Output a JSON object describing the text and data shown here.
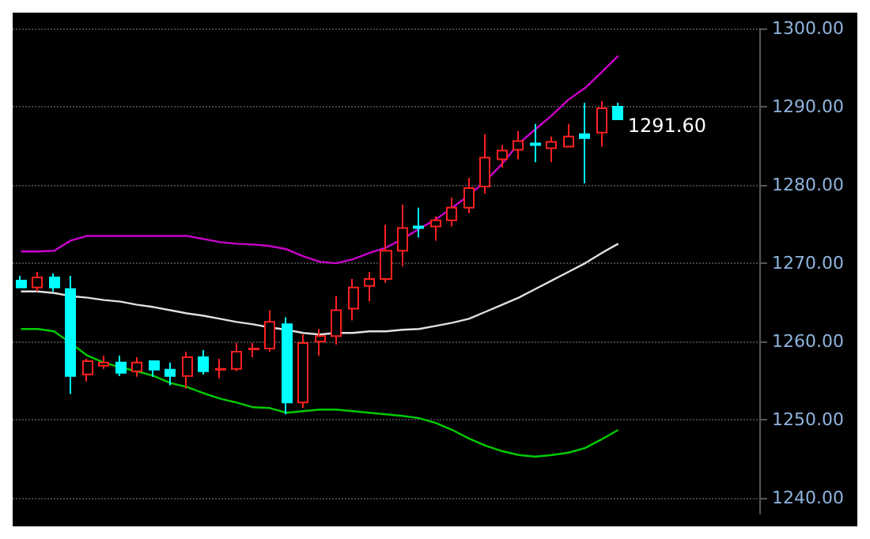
{
  "chart_data": {
    "type": "candlestick",
    "categories": [
      null,
      null,
      null,
      null,
      null,
      null,
      null,
      null,
      null,
      null,
      null,
      null,
      null,
      null,
      null,
      null,
      null,
      null,
      null,
      null,
      null,
      null,
      null,
      null,
      null,
      null,
      null,
      null,
      null,
      null,
      null,
      null,
      null,
      null,
      null,
      null,
      null,
      null,
      null,
      null,
      null,
      null,
      null,
      null,
      null
    ],
    "ylim": [
      1238,
      1300
    ],
    "yticks": [
      {
        "value": 1240,
        "label": "1240.00"
      },
      {
        "value": 1250,
        "label": "1250.00"
      },
      {
        "value": 1260,
        "label": "1260.00"
      },
      {
        "value": 1270,
        "label": "1270.00"
      },
      {
        "value": 1280,
        "label": "1280.00"
      },
      {
        "value": 1290,
        "label": "1290.00"
      },
      {
        "value": 1300,
        "label": "1300.00"
      }
    ],
    "grid": "y",
    "annotations": [
      "1291.60"
    ],
    "series": [
      {
        "type": "line",
        "color": "#cc00cc",
        "values": [
          1271.5,
          1271.5,
          1271.6,
          1272.9,
          1273.5,
          1273.5,
          1273.5,
          1273.5,
          1273.5,
          1273.5,
          1273.5,
          1273.1,
          1272.7,
          1272.5,
          1272.4,
          1272.2,
          1271.8,
          1270.9,
          1270.2,
          1270.0,
          1270.5,
          1271.3,
          1272.0,
          1273.1,
          1274.4,
          1275.6,
          1277.1,
          1278.7,
          1280.5,
          1282.7,
          1285.3,
          1287.1,
          1288.9,
          1290.9,
          1292.4,
          1294.4,
          1296.5,
          null,
          null,
          null,
          null,
          null,
          null,
          null,
          null
        ]
      },
      {
        "type": "line",
        "color": "#e0e0e0",
        "values": [
          1266.4,
          1266.4,
          1266.2,
          1265.8,
          1265.6,
          1265.3,
          1265.1,
          1264.7,
          1264.4,
          1264.0,
          1263.6,
          1263.3,
          1262.9,
          1262.5,
          1262.2,
          1261.8,
          1261.5,
          1261.1,
          1260.9,
          1261.1,
          1261.1,
          1261.3,
          1261.3,
          1261.5,
          1261.6,
          1262.0,
          1262.4,
          1262.9,
          1263.8,
          1264.7,
          1265.6,
          1266.7,
          1267.8,
          1268.9,
          1270.0,
          1271.3,
          1272.5,
          null,
          null,
          null,
          null,
          null,
          null,
          null,
          null
        ]
      },
      {
        "type": "line",
        "color": "#00cc00",
        "values": [
          1261.6,
          1261.6,
          1261.3,
          1259.8,
          1258.2,
          1257.3,
          1256.7,
          1256.2,
          1255.6,
          1254.7,
          1254.2,
          1253.4,
          1252.7,
          1252.2,
          1251.6,
          1251.5,
          1250.9,
          1251.1,
          1251.3,
          1251.3,
          1251.1,
          1250.9,
          1250.7,
          1250.5,
          1250.2,
          1249.6,
          1248.7,
          1247.6,
          1246.7,
          1246.0,
          1245.5,
          1245.3,
          1245.5,
          1245.8,
          1246.4,
          1247.5,
          1248.7,
          null,
          null,
          null,
          null,
          null,
          null,
          null,
          null
        ]
      },
      {
        "colors": [
          "#00ffff",
          "#ff2020",
          "#00ffff",
          "#00ffff",
          "#ff2020",
          "#ff2020",
          "#00ffff",
          "#ff2020",
          "#00ffff",
          "#00ffff",
          "#ff2020",
          "#00ffff",
          "#ff2020",
          "#ff2020",
          "#ff2020",
          "#ff2020",
          "#00ffff",
          "#ff2020",
          "#ff2020",
          "#ff2020",
          "#ff2020",
          "#ff2020",
          "#ff2020",
          "#ff2020",
          "#00ffff",
          "#ff2020",
          "#ff2020",
          "#ff2020",
          "#ff2020",
          "#ff2020",
          "#ff2020",
          "#00ffff",
          "#ff2020",
          "#ff2020",
          "#00ffff",
          "#ff2020",
          "#00ffff",
          null,
          null,
          null,
          null,
          null,
          null,
          null,
          null
        ],
        "ohlc": [
          [
            1267.8,
            1268.4,
            1266.9,
            1266.9
          ],
          [
            1266.9,
            1268.9,
            1266.4,
            1268.2
          ],
          [
            1268.2,
            1268.7,
            1266.4,
            1266.9
          ],
          [
            1266.7,
            1268.4,
            1253.3,
            1255.6
          ],
          [
            1255.8,
            1257.8,
            1254.9,
            1257.5
          ],
          [
            1256.9,
            1258.2,
            1256.5,
            1257.3
          ],
          [
            1257.3,
            1258.2,
            1255.6,
            1256.0
          ],
          [
            1256.2,
            1258.0,
            1255.5,
            1257.3
          ],
          [
            1257.5,
            1257.6,
            1255.5,
            1256.4
          ],
          [
            1256.4,
            1257.3,
            1254.4,
            1255.6
          ],
          [
            1255.6,
            1258.7,
            1254.0,
            1258.0
          ],
          [
            1258.0,
            1258.9,
            1255.8,
            1256.2
          ],
          [
            1256.4,
            1257.8,
            1255.3,
            1256.5
          ],
          [
            1256.5,
            1259.8,
            1256.2,
            1258.7
          ],
          [
            1259.0,
            1259.8,
            1258.0,
            1259.1
          ],
          [
            1259.1,
            1264.0,
            1258.7,
            1262.5
          ],
          [
            1262.2,
            1263.1,
            1250.7,
            1252.2
          ],
          [
            1252.2,
            1260.9,
            1251.5,
            1259.8
          ],
          [
            1260.0,
            1261.6,
            1258.2,
            1260.7
          ],
          [
            1260.7,
            1265.8,
            1259.6,
            1264.0
          ],
          [
            1264.2,
            1268.0,
            1262.7,
            1266.9
          ],
          [
            1267.1,
            1268.9,
            1265.1,
            1268.0
          ],
          [
            1268.0,
            1274.9,
            1267.5,
            1271.6
          ],
          [
            1271.6,
            1277.5,
            1269.6,
            1274.5
          ],
          [
            1274.7,
            1277.1,
            1273.3,
            1274.5
          ],
          [
            1274.7,
            1276.0,
            1272.9,
            1275.5
          ],
          [
            1275.5,
            1278.4,
            1274.7,
            1277.1
          ],
          [
            1277.1,
            1280.9,
            1276.4,
            1279.6
          ],
          [
            1279.8,
            1286.5,
            1278.9,
            1283.5
          ],
          [
            1283.3,
            1285.1,
            1282.2,
            1284.4
          ],
          [
            1284.5,
            1286.9,
            1283.3,
            1285.6
          ],
          [
            1285.3,
            1287.8,
            1282.9,
            1285.1
          ],
          [
            1284.7,
            1286.2,
            1282.9,
            1285.5
          ],
          [
            1284.9,
            1287.8,
            1284.9,
            1286.2
          ],
          [
            1286.5,
            1290.5,
            1280.2,
            1286.0
          ],
          [
            1286.7,
            1290.7,
            1284.9,
            1289.8
          ],
          [
            1290.0,
            1290.5,
            1288.4,
            1288.4
          ],
          null,
          null,
          null,
          null,
          null,
          null,
          null,
          null
        ]
      }
    ]
  }
}
